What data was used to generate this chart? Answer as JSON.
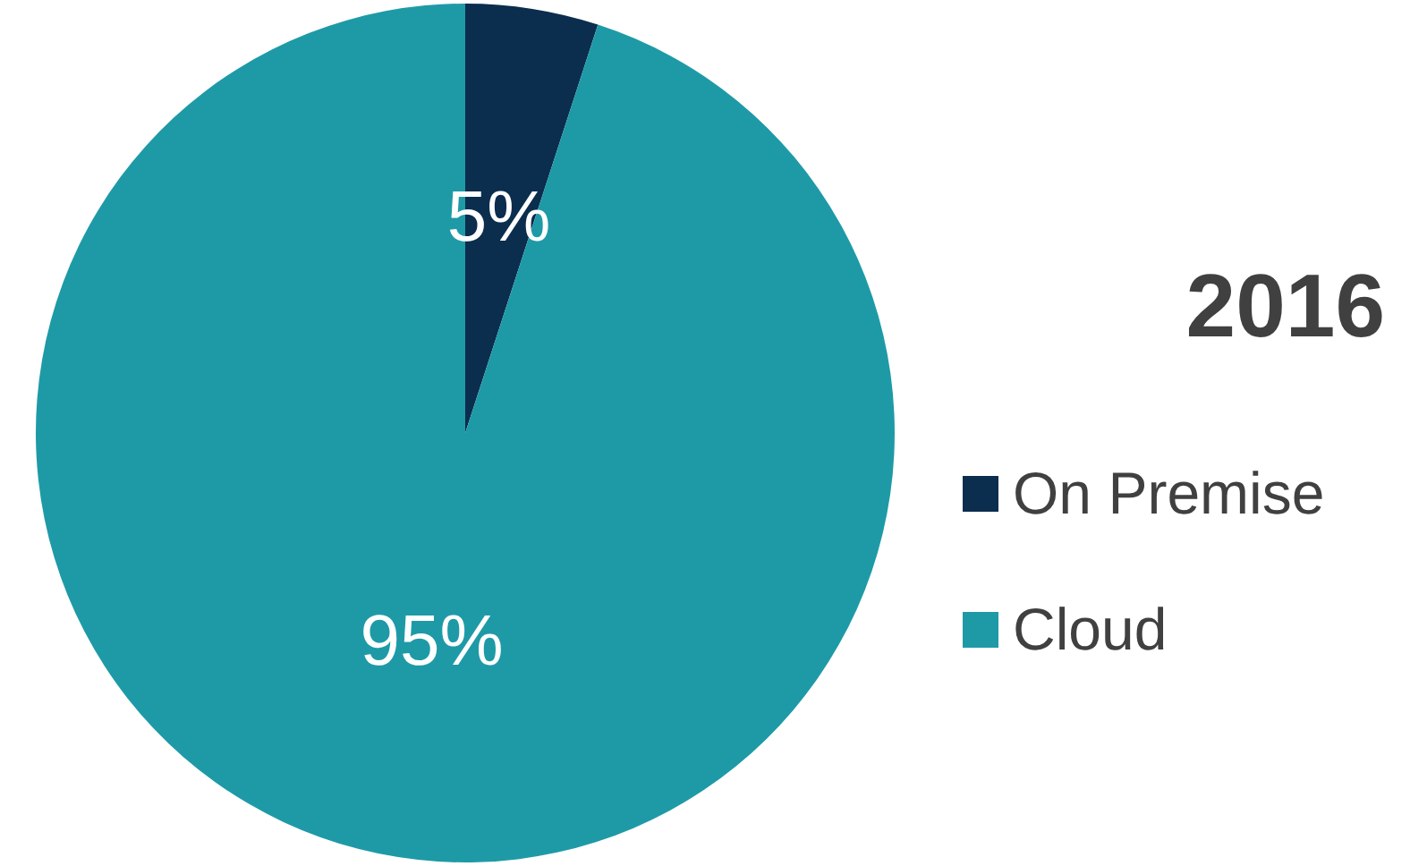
{
  "chart_data": {
    "type": "pie",
    "title": "2016",
    "categories": [
      "On Premise",
      "Cloud"
    ],
    "values": [
      5,
      95
    ],
    "colors": [
      "#0b2d4e",
      "#1e9aa7"
    ],
    "value_labels": [
      "5%",
      "95%"
    ],
    "legend": "right"
  }
}
